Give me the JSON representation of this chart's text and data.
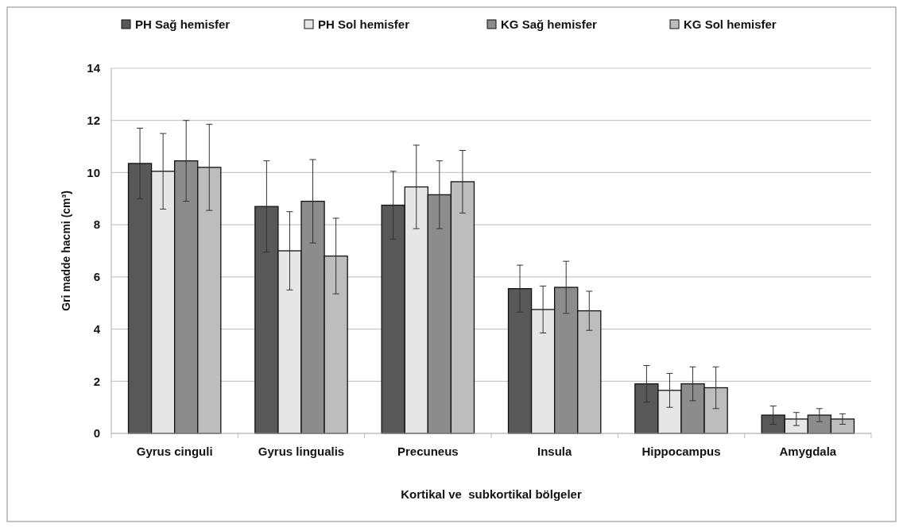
{
  "chart_data": {
    "type": "bar",
    "xlabel": "Kortikal ve  subkortikal bölgeler",
    "ylabel": "Gri madde hacmi (cm³)",
    "categories": [
      "Gyrus cinguli",
      "Gyrus lingualis",
      "Precuneus",
      "Insula",
      "Hippocampus",
      "Amygdala"
    ],
    "series": [
      {
        "name": "PH Sağ hemisfer",
        "color": "#585858",
        "values": [
          10.35,
          8.7,
          8.75,
          5.55,
          1.9,
          0.7
        ],
        "errors": [
          1.35,
          1.75,
          1.3,
          0.9,
          0.7,
          0.35
        ]
      },
      {
        "name": "PH Sol hemisfer",
        "color": "#e6e6e6",
        "values": [
          10.05,
          7.0,
          9.45,
          4.75,
          1.65,
          0.55
        ],
        "errors": [
          1.45,
          1.5,
          1.6,
          0.9,
          0.65,
          0.25
        ]
      },
      {
        "name": "KG Sağ hemisfer",
        "color": "#8c8c8c",
        "values": [
          10.45,
          8.9,
          9.15,
          5.6,
          1.9,
          0.7
        ],
        "errors": [
          1.55,
          1.6,
          1.3,
          1.0,
          0.65,
          0.25
        ]
      },
      {
        "name": "KG Sol hemisfer",
        "color": "#bdbdbd",
        "values": [
          10.2,
          6.8,
          9.65,
          4.7,
          1.75,
          0.55
        ],
        "errors": [
          1.65,
          1.45,
          1.2,
          0.75,
          0.8,
          0.2
        ]
      }
    ],
    "ylim": [
      0,
      14
    ],
    "yticks": [
      0,
      2,
      4,
      6,
      8,
      10,
      12,
      14
    ],
    "grid": "y",
    "legend": "top"
  }
}
